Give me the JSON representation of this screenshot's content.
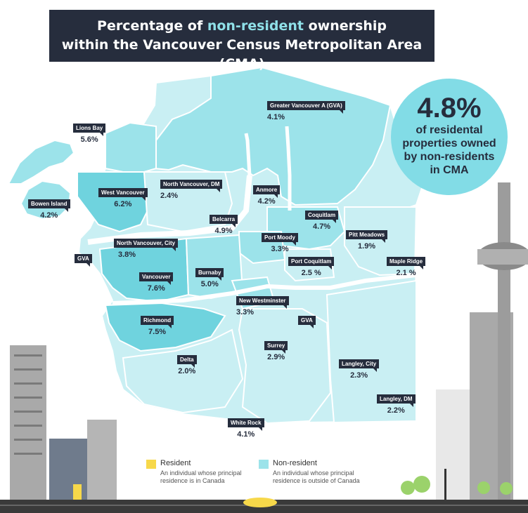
{
  "title": {
    "line1_pre": "Percentage of ",
    "line1_highlight": "non-resident",
    "line1_post": " ownership",
    "line2": "within the Vancouver Census Metropolitan Area (CMA)"
  },
  "summary": {
    "value": "4.8%",
    "text": "of residental properties owned by non-residents in CMA"
  },
  "regions": [
    {
      "name": "Greater Vancouver A (GVA)",
      "value": "4.1%"
    },
    {
      "name": "Lions Bay",
      "value": "5.6%"
    },
    {
      "name": "Bowen Island",
      "value": "4.2%"
    },
    {
      "name": "West Vancouver",
      "value": "6.2%"
    },
    {
      "name": "North Vancouver, DM",
      "value": "2.4%"
    },
    {
      "name": "Anmore",
      "value": "4.2%"
    },
    {
      "name": "Belcarra",
      "value": "4.9%"
    },
    {
      "name": "Coquitlam",
      "value": "4.7%"
    },
    {
      "name": "North Vancouver, City",
      "value": "3.8%"
    },
    {
      "name": "Port Moody",
      "value": "3.3%"
    },
    {
      "name": "Pitt Meadows",
      "value": "1.9%"
    },
    {
      "name": "Port Coquitlam",
      "value": "2.5 %"
    },
    {
      "name": "Maple Ridge",
      "value": "2.1 %"
    },
    {
      "name": "Vancouver",
      "value": "7.6%"
    },
    {
      "name": "Burnaby",
      "value": "5.0%"
    },
    {
      "name": "New Westminster",
      "value": "3.3%"
    },
    {
      "name": "Richmond",
      "value": "7.5%"
    },
    {
      "name": "Delta",
      "value": "2.0%"
    },
    {
      "name": "Surrey",
      "value": "2.9%"
    },
    {
      "name": "Langley, City",
      "value": "2.3%"
    },
    {
      "name": "Langley, DM",
      "value": "2.2%"
    },
    {
      "name": "White Rock",
      "value": "4.1%"
    }
  ],
  "gva_tags": [
    "GVA",
    "GVA"
  ],
  "legend": {
    "resident": {
      "label": "Resident",
      "desc": "An individual whose principal residence is in Canada",
      "color": "#f7d84a"
    },
    "nonresident": {
      "label": "Non-resident",
      "desc": "An individual whose principal residence is outside of Canada",
      "color": "#9ce3ea"
    }
  },
  "colors": {
    "dark": "#262d3d",
    "light_region": "#c9eff3",
    "mid_region": "#9ce3ea",
    "strong_region": "#6fd3de",
    "ocean": "#ffffff"
  }
}
